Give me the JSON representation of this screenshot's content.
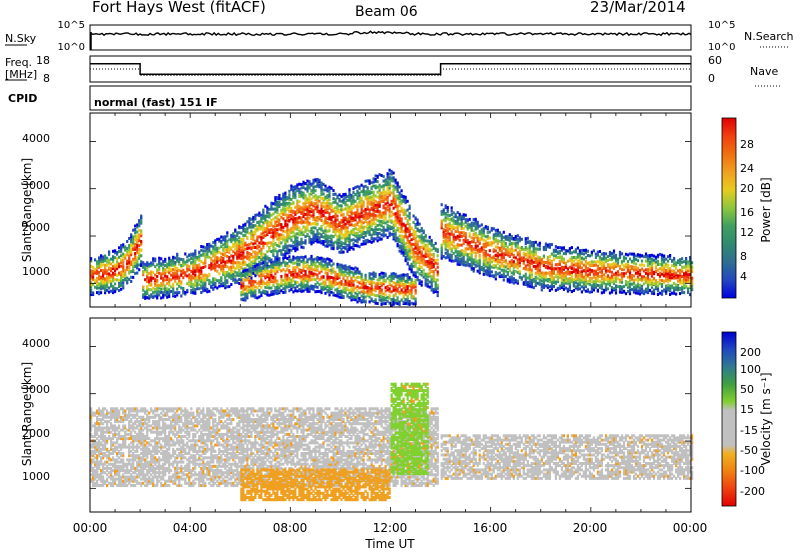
{
  "header": {
    "station": "Fort Hays West (fitACF)",
    "beam": "Beam 06",
    "date": "23/Mar/2014"
  },
  "panels": {
    "nsky_label": "N.Sky",
    "nsky_ticks": [
      "10^5",
      "10^0"
    ],
    "nsearch_label": "N.Search",
    "nsearch_ticks": [
      "10^5",
      "10^0"
    ],
    "freq_label": "Freq.",
    "freq_unit": "[MHz]",
    "freq_ticks": [
      "18",
      "8"
    ],
    "nave_label": "Nave",
    "nave_ticks": [
      "60",
      "0"
    ],
    "cpid_label": "CPID",
    "cpid_value": "normal (fast) 151 IF"
  },
  "chart_data": [
    {
      "type": "line",
      "name": "status-panels",
      "xlim": [
        0,
        24
      ],
      "frequency": {
        "series": [
          {
            "x": [
              0,
              2,
              2,
              14,
              14,
              24
            ],
            "values": [
              15,
              15,
              11,
              11,
              15,
              15
            ]
          }
        ]
      },
      "nave": {
        "series": [
          {
            "x": [
              0,
              2,
              2,
              14,
              14,
              24
            ],
            "values": [
              30,
              30,
              15,
              15,
              30,
              30
            ]
          }
        ]
      }
    },
    {
      "type": "heatmap",
      "name": "power",
      "ylabel": "Slant Range [km]",
      "yticks": [
        "1000",
        "2000",
        "3000",
        "4000"
      ],
      "ylim": [
        500,
        4600
      ],
      "xlim": [
        0,
        24
      ],
      "colorbar": {
        "label": "Power [dB]",
        "ticks": [
          "28",
          "24",
          "20",
          "16",
          "12",
          "8",
          "4"
        ],
        "colors": [
          "#0000e0",
          "#2248c0",
          "#2f6e92",
          "#2f8a70",
          "#40a060",
          "#8cc63c",
          "#e6cc20",
          "#f0a020",
          "#f07010",
          "#f04010",
          "#e00000"
        ]
      },
      "bands": [
        {
          "x": [
            0,
            1,
            1.5,
            2,
            2.01,
            4,
            6,
            8,
            9,
            10,
            11,
            12,
            13,
            13.9
          ],
          "center": [
            1150,
            1250,
            1450,
            1900,
            1050,
            1200,
            1600,
            2350,
            2550,
            2250,
            2500,
            2700,
            1700,
            1250
          ],
          "width": [
            180,
            200,
            220,
            250,
            180,
            200,
            280,
            320,
            300,
            280,
            300,
            320,
            300,
            240
          ]
        },
        {
          "x": [
            14,
            16,
            18,
            20,
            22,
            24
          ],
          "center": [
            2100,
            1650,
            1350,
            1250,
            1200,
            1150
          ],
          "width": [
            260,
            240,
            220,
            200,
            190,
            180
          ]
        },
        {
          "x": [
            6,
            7,
            8,
            9,
            10,
            11,
            12,
            13
          ],
          "center": [
            950,
            1100,
            1200,
            1200,
            1050,
            900,
            880,
            850
          ],
          "width": [
            150,
            160,
            170,
            170,
            160,
            150,
            150,
            140
          ]
        }
      ]
    },
    {
      "type": "heatmap",
      "name": "velocity",
      "ylabel": "Slant Range [km]",
      "yticks": [
        "1000",
        "2000",
        "3000",
        "4000"
      ],
      "ylim": [
        500,
        4600
      ],
      "xlim": [
        0,
        24
      ],
      "xticks": [
        "00:00",
        "04:00",
        "08:00",
        "12:00",
        "16:00",
        "20:00",
        "00:00"
      ],
      "xlabel": "Time UT",
      "colorbar": {
        "label": "Velocity [m s⁻¹]",
        "ticks": [
          "200",
          "100",
          "50",
          "15",
          "-15",
          "-50",
          "-100",
          "-200"
        ],
        "colors": [
          "#e00000",
          "#f04010",
          "#f08010",
          "#f0b020",
          "#c0c0c0",
          "#c0c0c0",
          "#80d030",
          "#40a040",
          "#2f7a90",
          "#2048c0",
          "#0000d0"
        ]
      },
      "regions": [
        {
          "x0": 0,
          "x1": 13.9,
          "y0": 1050,
          "y1": 2700,
          "color": "#c0c0c0"
        },
        {
          "x0": 14,
          "x1": 24,
          "y0": 1200,
          "y1": 2100,
          "color": "#c0c0c0"
        },
        {
          "x0": 6,
          "x1": 12,
          "y0": 750,
          "y1": 1400,
          "color": "#f0a020"
        },
        {
          "x0": 12,
          "x1": 13.5,
          "y0": 1300,
          "y1": 3200,
          "color": "#80d030"
        }
      ]
    }
  ]
}
